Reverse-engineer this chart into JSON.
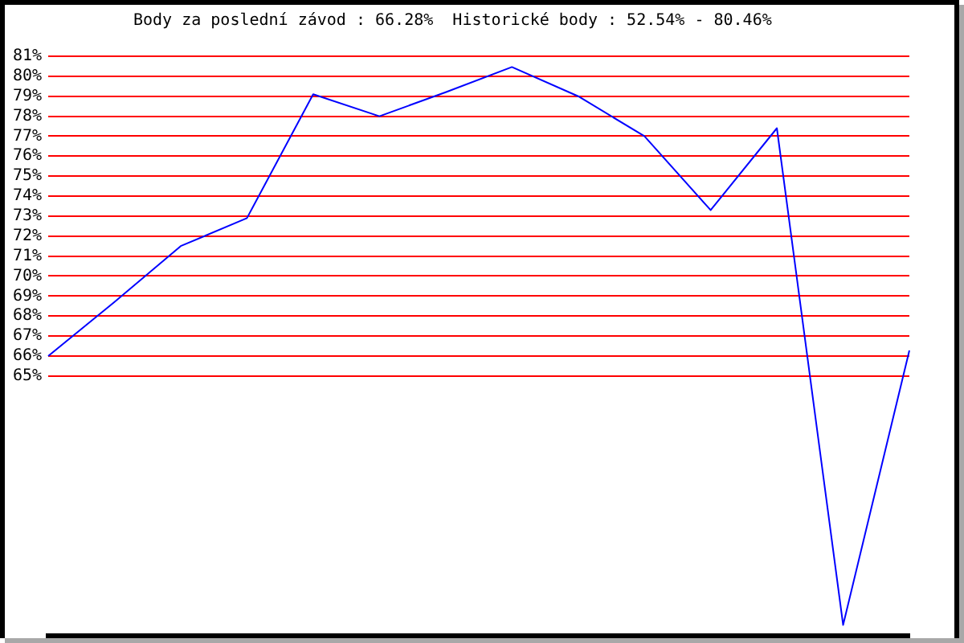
{
  "chart_data": {
    "type": "line",
    "title": "Body za poslední závod : 66.28%  Historické body : 52.54% - 80.46%",
    "categories": [
      null,
      null,
      null,
      null,
      null,
      null,
      null,
      null,
      null,
      null,
      null,
      null,
      null,
      null
    ],
    "values": [
      66.0,
      68.7,
      71.5,
      72.9,
      79.1,
      78.0,
      79.2,
      80.46,
      79.0,
      77.0,
      73.3,
      77.4,
      52.54,
      66.28
    ],
    "color": "#0000ff",
    "ylim": [
      52,
      81
    ],
    "yticks": [
      {
        "value": 65,
        "label": "65%"
      },
      {
        "value": 66,
        "label": "66%"
      },
      {
        "value": 67,
        "label": "67%"
      },
      {
        "value": 68,
        "label": "68%"
      },
      {
        "value": 69,
        "label": "69%"
      },
      {
        "value": 70,
        "label": "70%"
      },
      {
        "value": 71,
        "label": "71%"
      },
      {
        "value": 72,
        "label": "72%"
      },
      {
        "value": 73,
        "label": "73%"
      },
      {
        "value": 74,
        "label": "74%"
      },
      {
        "value": 75,
        "label": "75%"
      },
      {
        "value": 76,
        "label": "76%"
      },
      {
        "value": 77,
        "label": "77%"
      },
      {
        "value": 78,
        "label": "78%"
      },
      {
        "value": 79,
        "label": "79%"
      },
      {
        "value": 80,
        "label": "80%"
      },
      {
        "value": 81,
        "label": "81%"
      }
    ],
    "grid": "y",
    "tick_labels": "y",
    "marker": "none"
  }
}
